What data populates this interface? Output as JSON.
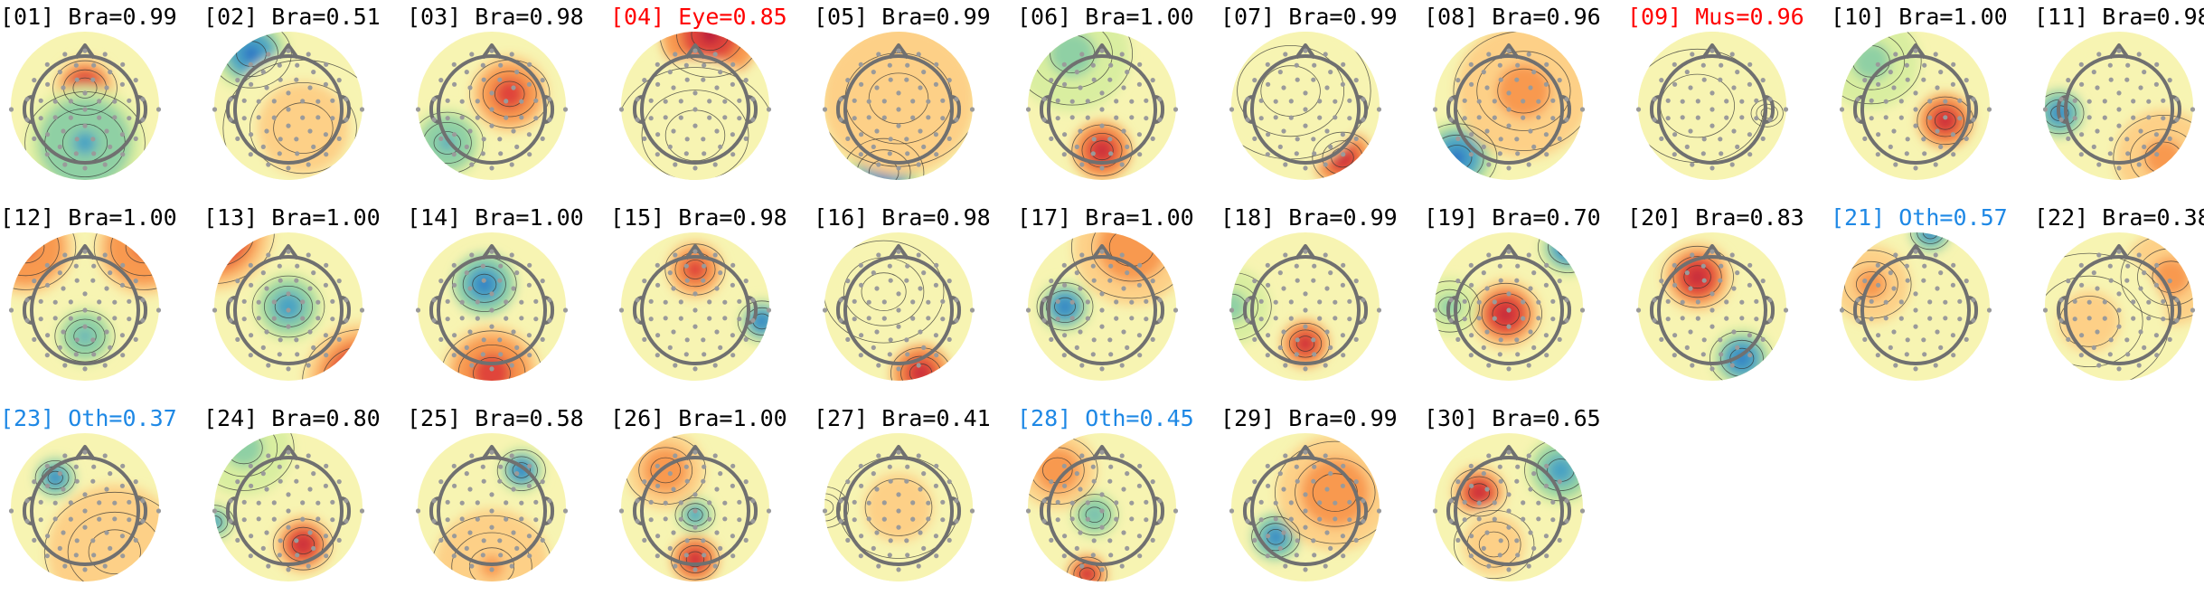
{
  "figure": {
    "colors": {
      "default_label": "#000000",
      "eye_label": "#ff0000",
      "muscle_label": "#ff0000",
      "other_label": "#1e88e5",
      "head_outline": "#707070",
      "electrode": "#9a9a9a",
      "contour": "#333333",
      "colormap": [
        "#2166c4",
        "#4aa3c3",
        "#8fd0a4",
        "#d9eea0",
        "#f7f4b2",
        "#fdd087",
        "#f8994f",
        "#e0453a",
        "#b8123a"
      ]
    },
    "components": [
      {
        "index": "01",
        "label": "[01] Bra=0.99",
        "class": "Brain",
        "prob": 0.99,
        "pattern": [
          [
            0.5,
            0.38,
            0.9,
            0.16
          ],
          [
            0.5,
            0.75,
            -0.7,
            0.3
          ]
        ]
      },
      {
        "index": "02",
        "label": "[02] Bra=0.51",
        "class": "Brain",
        "prob": 0.51,
        "pattern": [
          [
            0.25,
            0.15,
            -0.9,
            0.2
          ],
          [
            0.6,
            0.65,
            0.2,
            0.4
          ]
        ]
      },
      {
        "index": "03",
        "label": "[03] Bra=0.98",
        "class": "Brain",
        "prob": 0.98,
        "pattern": [
          [
            0.62,
            0.42,
            0.8,
            0.2
          ],
          [
            0.2,
            0.75,
            -0.7,
            0.18
          ]
        ]
      },
      {
        "index": "04",
        "label": "[04] Eye=0.85",
        "class": "Eye",
        "prob": 0.85,
        "pattern": [
          [
            0.6,
            0.02,
            1.0,
            0.25
          ],
          [
            0.5,
            0.7,
            0.1,
            0.4
          ]
        ]
      },
      {
        "index": "05",
        "label": "[05] Bra=0.99",
        "class": "Brain",
        "prob": 0.99,
        "pattern": [
          [
            0.4,
            0.95,
            -0.9,
            0.2
          ],
          [
            0.5,
            0.45,
            0.35,
            0.4
          ]
        ]
      },
      {
        "index": "06",
        "label": "[06] Bra=1.00",
        "class": "Brain",
        "prob": 1.0,
        "pattern": [
          [
            0.5,
            0.8,
            1.0,
            0.15
          ],
          [
            0.3,
            0.15,
            -0.5,
            0.3
          ]
        ]
      },
      {
        "index": "07",
        "label": "[07] Bra=0.99",
        "class": "Brain",
        "prob": 0.99,
        "pattern": [
          [
            0.75,
            0.85,
            1.0,
            0.15
          ],
          [
            0.4,
            0.4,
            0.1,
            0.4
          ]
        ]
      },
      {
        "index": "08",
        "label": "[08] Bra=0.96",
        "class": "Brain",
        "prob": 0.96,
        "pattern": [
          [
            0.15,
            0.85,
            -0.9,
            0.2
          ],
          [
            0.6,
            0.4,
            0.45,
            0.35
          ]
        ]
      },
      {
        "index": "09",
        "label": "[09] Mus=0.96",
        "class": "Muscle",
        "prob": 0.96,
        "pattern": [
          [
            0.87,
            0.55,
            -1.0,
            0.08
          ],
          [
            0.4,
            0.5,
            0.05,
            0.5
          ]
        ]
      },
      {
        "index": "10",
        "label": "[10] Bra=1.00",
        "class": "Brain",
        "prob": 1.0,
        "pattern": [
          [
            0.7,
            0.6,
            1.0,
            0.14
          ],
          [
            0.2,
            0.2,
            -0.5,
            0.25
          ]
        ]
      },
      {
        "index": "11",
        "label": "[11] Bra=0.98",
        "class": "Brain",
        "prob": 0.98,
        "pattern": [
          [
            0.1,
            0.55,
            -1.0,
            0.12
          ],
          [
            0.8,
            0.85,
            0.5,
            0.25
          ]
        ]
      },
      {
        "index": "12",
        "label": "[12] Bra=1.00",
        "class": "Brain",
        "prob": 1.0,
        "pattern": [
          [
            0.5,
            0.7,
            -0.7,
            0.15
          ],
          [
            0.1,
            0.1,
            0.7,
            0.25
          ],
          [
            0.9,
            0.1,
            0.7,
            0.25
          ]
        ]
      },
      {
        "index": "13",
        "label": "[13] Bra=1.00",
        "class": "Brain",
        "prob": 1.0,
        "pattern": [
          [
            0.5,
            0.5,
            -0.8,
            0.18
          ],
          [
            0.0,
            0.0,
            0.9,
            0.3
          ],
          [
            1.0,
            1.0,
            0.9,
            0.3
          ]
        ]
      },
      {
        "index": "14",
        "label": "[14] Bra=1.00",
        "class": "Brain",
        "prob": 1.0,
        "pattern": [
          [
            0.45,
            0.35,
            -1.0,
            0.16
          ],
          [
            0.5,
            0.95,
            0.8,
            0.25
          ]
        ]
      },
      {
        "index": "15",
        "label": "[15] Bra=0.98",
        "class": "Brain",
        "prob": 0.98,
        "pattern": [
          [
            0.5,
            0.25,
            0.8,
            0.15
          ],
          [
            0.95,
            0.6,
            -0.9,
            0.12
          ]
        ]
      },
      {
        "index": "16",
        "label": "[16] Bra=0.98",
        "class": "Brain",
        "prob": 0.98,
        "pattern": [
          [
            0.65,
            0.95,
            1.0,
            0.15
          ],
          [
            0.4,
            0.4,
            0.0,
            0.3
          ]
        ]
      },
      {
        "index": "17",
        "label": "[17] Bra=1.00",
        "class": "Brain",
        "prob": 1.0,
        "pattern": [
          [
            0.25,
            0.5,
            -0.9,
            0.14
          ],
          [
            0.7,
            0.1,
            0.6,
            0.3
          ]
        ]
      },
      {
        "index": "18",
        "label": "[18] Bra=0.99",
        "class": "Brain",
        "prob": 0.99,
        "pattern": [
          [
            0.5,
            0.75,
            1.0,
            0.12
          ],
          [
            0.0,
            0.5,
            -0.5,
            0.2
          ]
        ]
      },
      {
        "index": "19",
        "label": "[19] Bra=0.70",
        "class": "Brain",
        "prob": 0.7,
        "pattern": [
          [
            0.48,
            0.55,
            0.9,
            0.18
          ],
          [
            0.9,
            0.1,
            -0.9,
            0.15
          ],
          [
            0.1,
            0.5,
            -0.5,
            0.15
          ]
        ]
      },
      {
        "index": "20",
        "label": "[20] Bra=0.83",
        "class": "Brain",
        "prob": 0.83,
        "pattern": [
          [
            0.4,
            0.3,
            0.9,
            0.18
          ],
          [
            0.7,
            0.85,
            -0.9,
            0.16
          ]
        ]
      },
      {
        "index": "21",
        "label": "[21] Oth=0.57",
        "class": "Other",
        "prob": 0.57,
        "pattern": [
          [
            0.6,
            0.0,
            -1.0,
            0.1
          ],
          [
            0.2,
            0.35,
            0.45,
            0.2
          ]
        ]
      },
      {
        "index": "22",
        "label": "[22] Bra=0.38",
        "class": "Brain",
        "prob": 0.38,
        "pattern": [
          [
            0.85,
            0.3,
            0.45,
            0.25
          ],
          [
            0.3,
            0.6,
            0.15,
            0.4
          ]
        ]
      },
      {
        "index": "23",
        "label": "[23] Oth=0.37",
        "class": "Other",
        "prob": 0.37,
        "pattern": [
          [
            0.3,
            0.3,
            -1.0,
            0.1
          ],
          [
            0.7,
            0.8,
            0.35,
            0.35
          ]
        ]
      },
      {
        "index": "24",
        "label": "[24] Bra=0.80",
        "class": "Brain",
        "prob": 0.8,
        "pattern": [
          [
            0.6,
            0.75,
            0.9,
            0.15
          ],
          [
            0.2,
            0.1,
            -0.5,
            0.25
          ],
          [
            0.0,
            0.6,
            -0.8,
            0.1
          ]
        ]
      },
      {
        "index": "25",
        "label": "[25] Bra=0.58",
        "class": "Brain",
        "prob": 0.58,
        "pattern": [
          [
            0.7,
            0.25,
            -0.9,
            0.12
          ],
          [
            0.5,
            0.9,
            0.4,
            0.3
          ]
        ]
      },
      {
        "index": "26",
        "label": "[26] Bra=1.00",
        "class": "Brain",
        "prob": 1.0,
        "pattern": [
          [
            0.5,
            0.85,
            1.0,
            0.12
          ],
          [
            0.5,
            0.55,
            -0.8,
            0.1
          ],
          [
            0.3,
            0.25,
            0.6,
            0.2
          ]
        ]
      },
      {
        "index": "27",
        "label": "[27] Bra=0.41",
        "class": "Brain",
        "prob": 0.41,
        "pattern": [
          [
            0.0,
            0.5,
            0.6,
            0.12
          ],
          [
            0.5,
            0.5,
            0.15,
            0.45
          ]
        ]
      },
      {
        "index": "28",
        "label": "[28] Oth=0.45",
        "class": "Other",
        "prob": 0.45,
        "pattern": [
          [
            0.4,
            0.95,
            1.0,
            0.1
          ],
          [
            0.45,
            0.55,
            -0.7,
            0.12
          ],
          [
            0.2,
            0.25,
            0.6,
            0.2
          ]
        ]
      },
      {
        "index": "29",
        "label": "[29] Bra=0.99",
        "class": "Brain",
        "prob": 0.99,
        "pattern": [
          [
            0.3,
            0.7,
            -1.0,
            0.12
          ],
          [
            0.7,
            0.4,
            0.6,
            0.3
          ]
        ]
      },
      {
        "index": "30",
        "label": "[30] Bra=0.65",
        "class": "Brain",
        "prob": 0.65,
        "pattern": [
          [
            0.3,
            0.4,
            0.9,
            0.14
          ],
          [
            0.85,
            0.25,
            -0.8,
            0.18
          ],
          [
            0.4,
            0.75,
            0.3,
            0.2
          ]
        ]
      }
    ]
  }
}
